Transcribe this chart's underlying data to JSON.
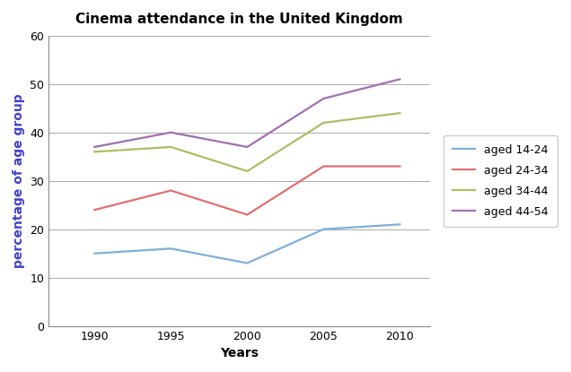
{
  "title": "Cinema attendance in the United Kingdom",
  "xlabel": "Years",
  "ylabel": "percentage of age group",
  "years": [
    1990,
    1995,
    2000,
    2005,
    2010
  ],
  "series": [
    {
      "label": "aged 14-24",
      "color": "#7EB0D9",
      "values": [
        15,
        16,
        13,
        20,
        21
      ]
    },
    {
      "label": "aged 24-34",
      "color": "#E07070",
      "values": [
        24,
        28,
        23,
        33,
        33
      ]
    },
    {
      "label": "aged 34-44",
      "color": "#A8C060",
      "values": [
        36,
        37,
        32,
        42,
        44
      ]
    },
    {
      "label": "aged 44-54",
      "color": "#A070B0",
      "values": [
        37,
        40,
        37,
        47,
        51
      ]
    }
  ],
  "ylim": [
    0,
    60
  ],
  "yticks": [
    0,
    10,
    20,
    30,
    40,
    50,
    60
  ],
  "xticks": [
    1990,
    1995,
    2000,
    2005,
    2010
  ],
  "background_color": "#ffffff",
  "grid_color": "#aaaaaa",
  "title_fontsize": 11,
  "axis_label_fontsize": 10,
  "tick_fontsize": 9,
  "legend_fontsize": 9,
  "linewidth": 1.6,
  "ylabel_color": "#4040CC"
}
